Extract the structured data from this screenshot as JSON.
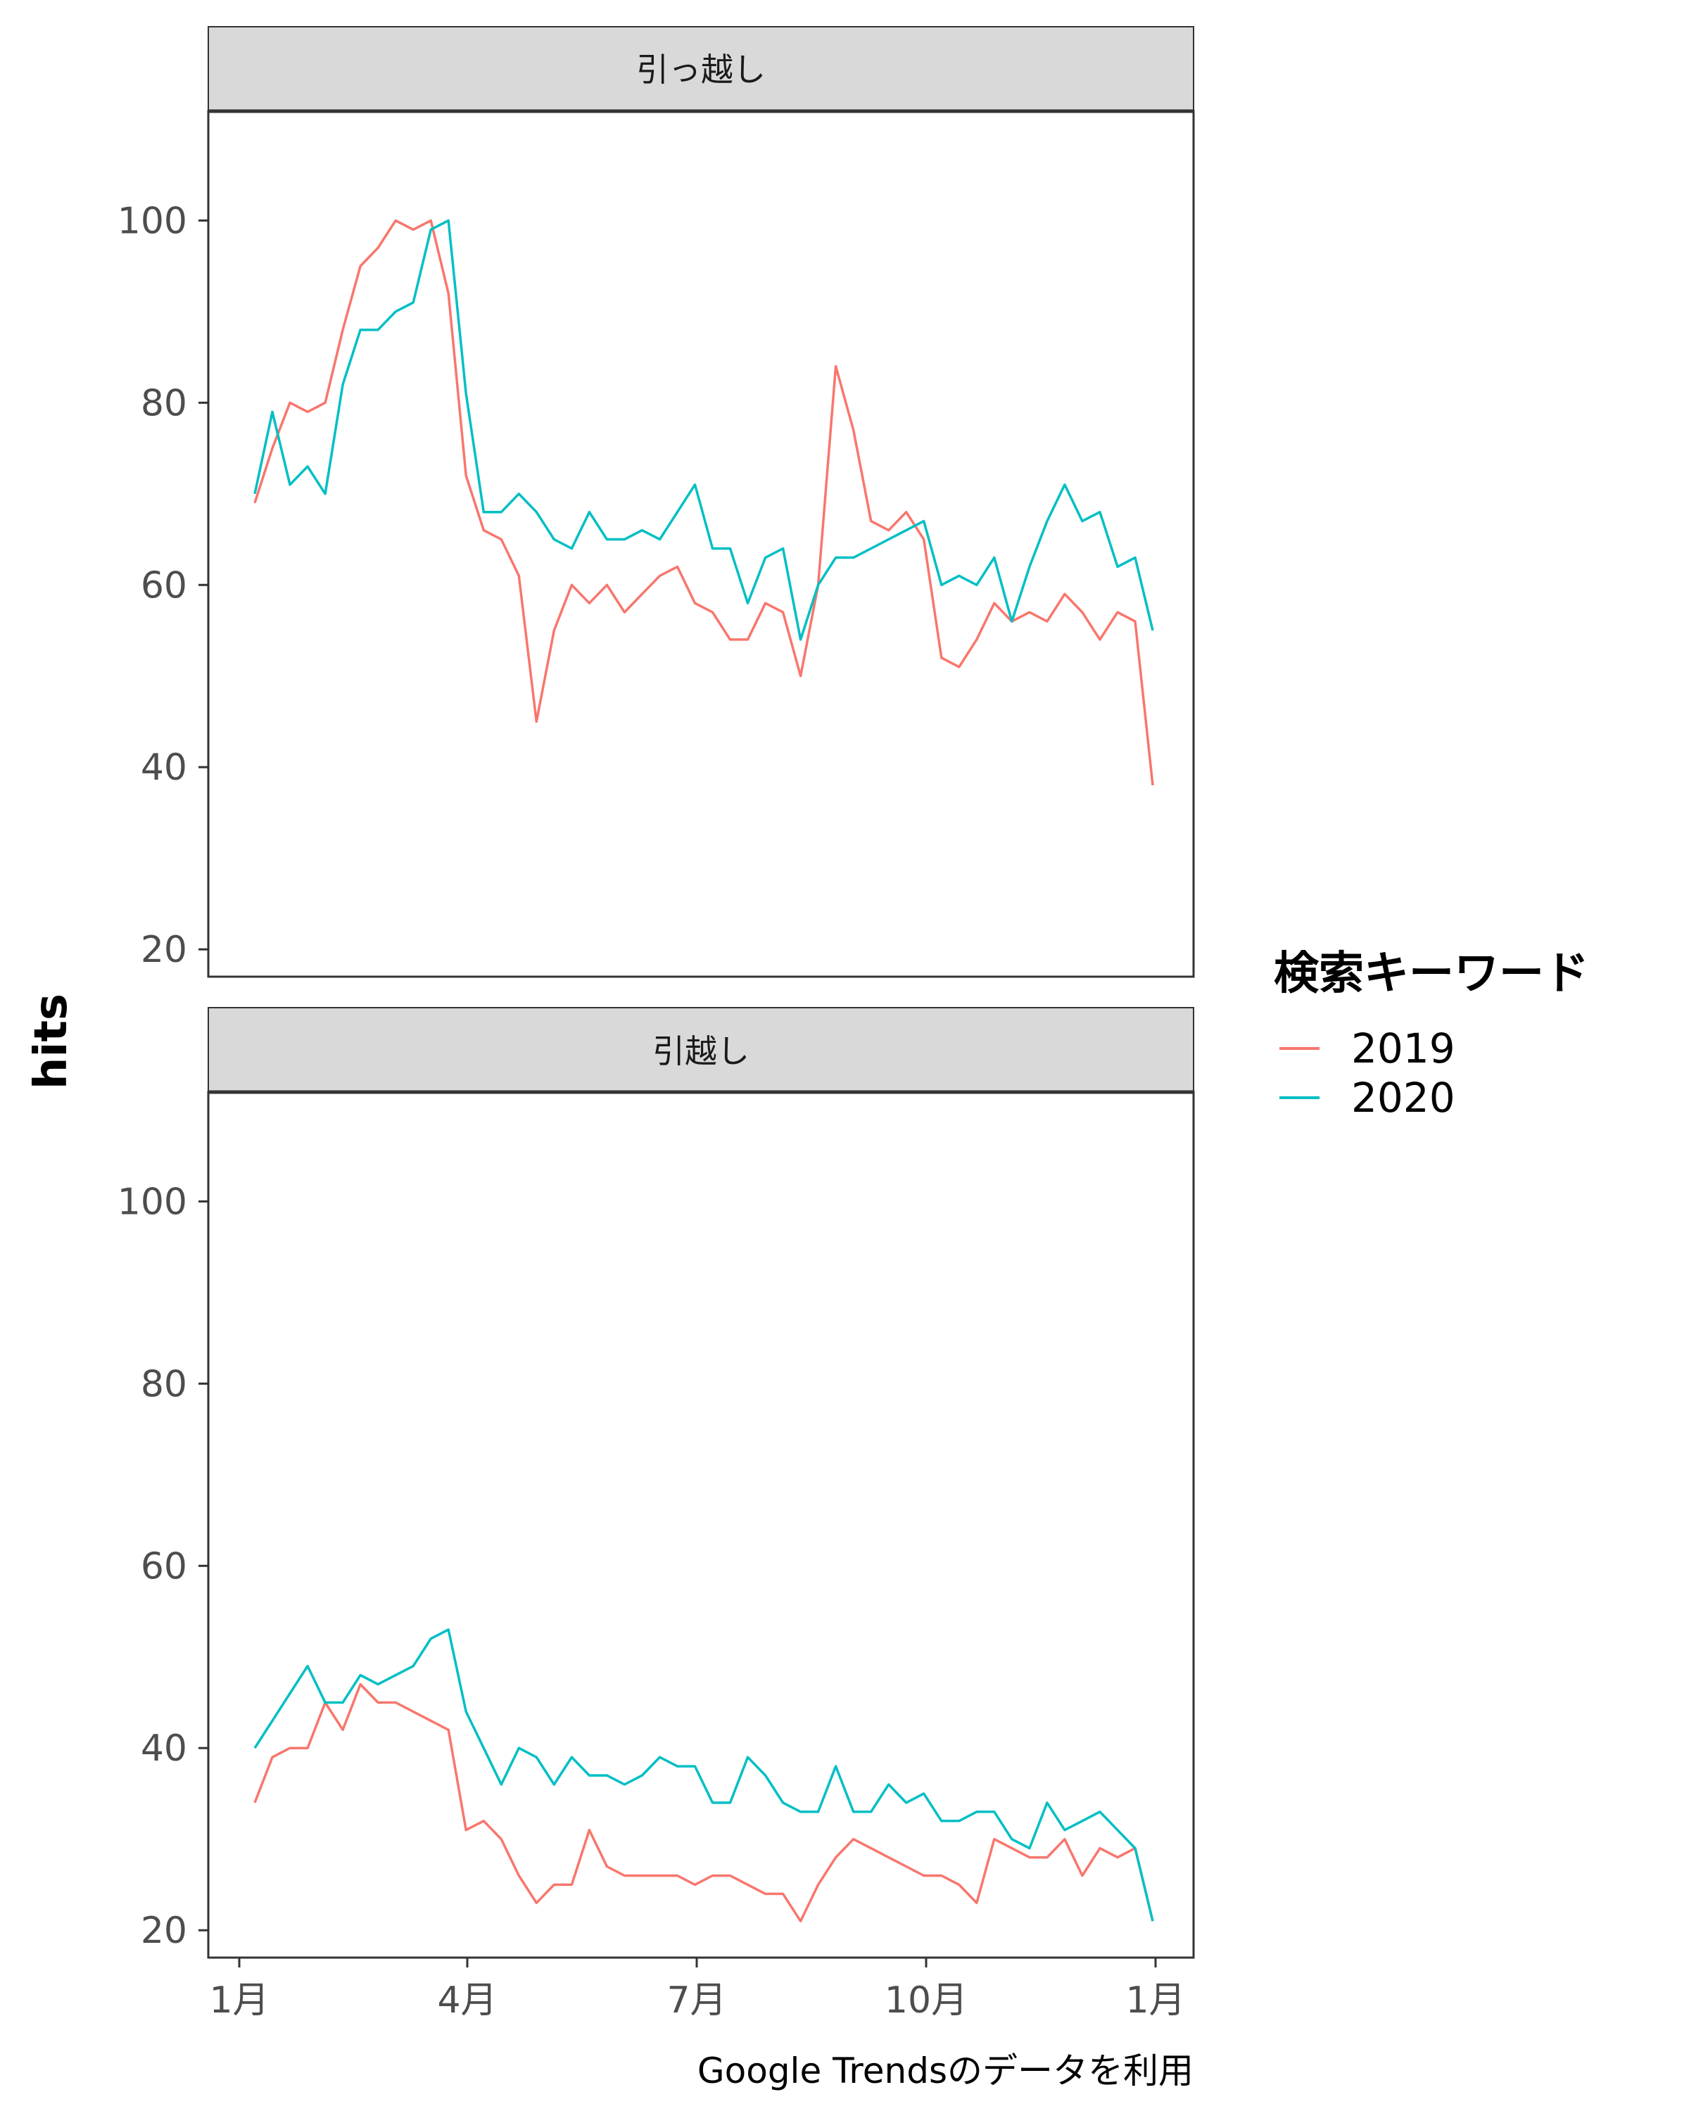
{
  "chart_data": {
    "type": "line",
    "ylabel": "hits",
    "caption": "Google Trendsのデータを利用",
    "ylim": [
      17,
      112
    ],
    "y_ticks": [
      20,
      40,
      60,
      80,
      100
    ],
    "x_ticks": [
      "1月",
      "4月",
      "7月",
      "10月",
      "1月"
    ],
    "legend": {
      "title": "検索キーワード",
      "position": "right"
    },
    "colors": {
      "2019": "#F8766D",
      "2020": "#00BFC4"
    },
    "series_names": [
      "2019",
      "2020"
    ],
    "panels": [
      {
        "strip": "引っ越し",
        "series": [
          {
            "name": "2019",
            "values": [
              69,
              75,
              80,
              79,
              80,
              88,
              95,
              97,
              100,
              99,
              100,
              92,
              72,
              66,
              65,
              61,
              45,
              55,
              60,
              58,
              60,
              57,
              59,
              61,
              62,
              58,
              57,
              54,
              54,
              58,
              57,
              50,
              60,
              84,
              77,
              67,
              66,
              68,
              65,
              52,
              51,
              54,
              58,
              56,
              57,
              56,
              59,
              57,
              54,
              57,
              56,
              38
            ]
          },
          {
            "name": "2020",
            "values": [
              70,
              79,
              71,
              73,
              70,
              82,
              88,
              88,
              90,
              91,
              99,
              100,
              81,
              68,
              68,
              70,
              68,
              65,
              64,
              68,
              65,
              65,
              66,
              65,
              68,
              71,
              64,
              64,
              58,
              63,
              64,
              54,
              60,
              63,
              63,
              64,
              65,
              66,
              67,
              60,
              61,
              60,
              63,
              56,
              62,
              67,
              71,
              67,
              68,
              62,
              63,
              55
            ]
          }
        ]
      },
      {
        "strip": "引越し",
        "series": [
          {
            "name": "2019",
            "values": [
              34,
              39,
              40,
              40,
              45,
              42,
              47,
              45,
              45,
              44,
              43,
              42,
              31,
              32,
              30,
              26,
              23,
              25,
              25,
              31,
              27,
              26,
              26,
              26,
              26,
              25,
              26,
              26,
              25,
              24,
              24,
              21,
              25,
              28,
              30,
              29,
              28,
              27,
              26,
              26,
              25,
              23,
              30,
              29,
              28,
              28,
              30,
              26,
              29,
              28,
              29,
              21
            ]
          },
          {
            "name": "2020",
            "values": [
              40,
              43,
              46,
              49,
              45,
              45,
              48,
              47,
              48,
              49,
              52,
              53,
              44,
              40,
              36,
              40,
              39,
              36,
              39,
              37,
              37,
              36,
              37,
              39,
              38,
              38,
              34,
              34,
              39,
              37,
              34,
              33,
              33,
              38,
              33,
              33,
              36,
              34,
              35,
              32,
              32,
              33,
              33,
              30,
              29,
              34,
              31,
              32,
              33,
              31,
              29,
              21
            ]
          }
        ]
      }
    ]
  }
}
